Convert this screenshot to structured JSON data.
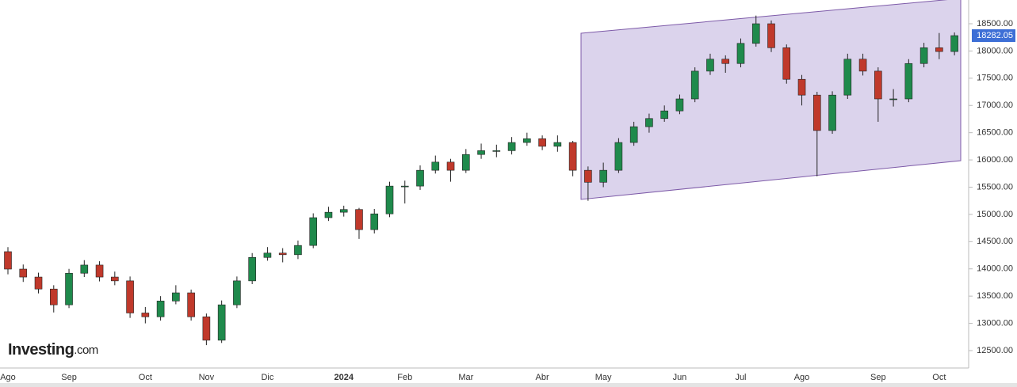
{
  "chart_data": {
    "type": "candlestick",
    "categories": [
      "Ago",
      null,
      null,
      null,
      "Sep",
      null,
      null,
      null,
      null,
      "Oct",
      null,
      null,
      null,
      "Nov",
      null,
      null,
      null,
      "Dic",
      null,
      null,
      null,
      null,
      "2024",
      null,
      null,
      null,
      "Feb",
      null,
      null,
      null,
      "Mar",
      null,
      null,
      null,
      null,
      "Abr",
      null,
      null,
      null,
      "May",
      null,
      null,
      null,
      null,
      "Jun",
      null,
      null,
      null,
      "Jul",
      null,
      null,
      null,
      "Ago",
      null,
      null,
      null,
      null,
      "Sep",
      null,
      null,
      null,
      "Oct",
      null
    ],
    "open": [
      14316,
      13996,
      13850,
      13630,
      13340,
      13920,
      14070,
      13850,
      13780,
      13190,
      13120,
      13410,
      13560,
      13120,
      12690,
      13340,
      13780,
      14210,
      14290,
      14260,
      14430,
      14940,
      15040,
      15090,
      14720,
      15010,
      15520,
      15520,
      15810,
      15960,
      15810,
      16100,
      16170,
      16170,
      16320,
      16390,
      16250,
      16320,
      15810,
      15590,
      15810,
      16320,
      16610,
      16760,
      16900,
      17120,
      17630,
      17850,
      17770,
      18140,
      18500,
      18060,
      17480,
      17190,
      16540,
      17190,
      17850,
      17630,
      17120,
      17120,
      17770,
      18060,
      17990
    ],
    "high": [
      14400,
      14080,
      13930,
      13700,
      14000,
      14160,
      14140,
      13950,
      13860,
      13300,
      13500,
      13700,
      13620,
      13180,
      13420,
      13860,
      14290,
      14400,
      14380,
      14520,
      15020,
      15140,
      15160,
      15120,
      15100,
      15600,
      15620,
      15900,
      16080,
      16020,
      16200,
      16300,
      16280,
      16420,
      16500,
      16450,
      16450,
      16350,
      15880,
      15950,
      16400,
      16700,
      16850,
      17000,
      17200,
      17700,
      17950,
      17920,
      18230,
      18650,
      18560,
      18120,
      17560,
      17250,
      17260,
      17950,
      17950,
      17700,
      17300,
      17850,
      18150,
      18330,
      18340
    ],
    "low": [
      13900,
      13760,
      13550,
      13200,
      13280,
      13850,
      13770,
      13700,
      13100,
      13000,
      13050,
      13350,
      13050,
      12600,
      12640,
      13280,
      13720,
      14150,
      14120,
      14180,
      14380,
      14880,
      14960,
      14550,
      14650,
      14950,
      15200,
      15450,
      15750,
      15600,
      15760,
      16020,
      16050,
      16100,
      16260,
      16180,
      16150,
      15700,
      15250,
      15500,
      15760,
      16260,
      16500,
      16700,
      16840,
      17060,
      17560,
      17600,
      17700,
      18080,
      17980,
      17400,
      17000,
      15700,
      16480,
      17120,
      17550,
      16700,
      16980,
      17060,
      17700,
      17850,
      17920
    ],
    "close": [
      13996,
      13850,
      13630,
      13340,
      13920,
      14070,
      13850,
      13780,
      13190,
      13120,
      13410,
      13560,
      13120,
      12690,
      13340,
      13780,
      14210,
      14290,
      14260,
      14430,
      14940,
      15040,
      15090,
      14720,
      15010,
      15520,
      15520,
      15810,
      15960,
      15810,
      16100,
      16170,
      16170,
      16320,
      16390,
      16250,
      16320,
      15810,
      15590,
      15810,
      16320,
      16610,
      16760,
      16900,
      17120,
      17630,
      17850,
      17770,
      18140,
      18500,
      18060,
      17480,
      17190,
      16540,
      17190,
      17850,
      17630,
      17120,
      17120,
      17770,
      18060,
      17990,
      18282.05
    ],
    "up_color": "#1f8a4c",
    "down_color": "#c0392b",
    "ylim": [
      12180,
      18936
    ],
    "yticks": [
      {
        "value": 12500,
        "label": "12500.00"
      },
      {
        "value": 13000,
        "label": "13000.00"
      },
      {
        "value": 13500,
        "label": "13500.00"
      },
      {
        "value": 14000,
        "label": "14000.00"
      },
      {
        "value": 14500,
        "label": "14500.00"
      },
      {
        "value": 15000,
        "label": "15000.00"
      },
      {
        "value": 15500,
        "label": "15500.00"
      },
      {
        "value": 16000,
        "label": "16000.00"
      },
      {
        "value": 16500,
        "label": "16500.00"
      },
      {
        "value": 17000,
        "label": "17000.00"
      },
      {
        "value": 17500,
        "label": "17500.00"
      },
      {
        "value": 18000,
        "label": "18000.00"
      },
      {
        "value": 18500,
        "label": "18500.00"
      }
    ],
    "grid": false
  },
  "logo": {
    "brand": "Investing",
    "suffix": ".com"
  }
}
